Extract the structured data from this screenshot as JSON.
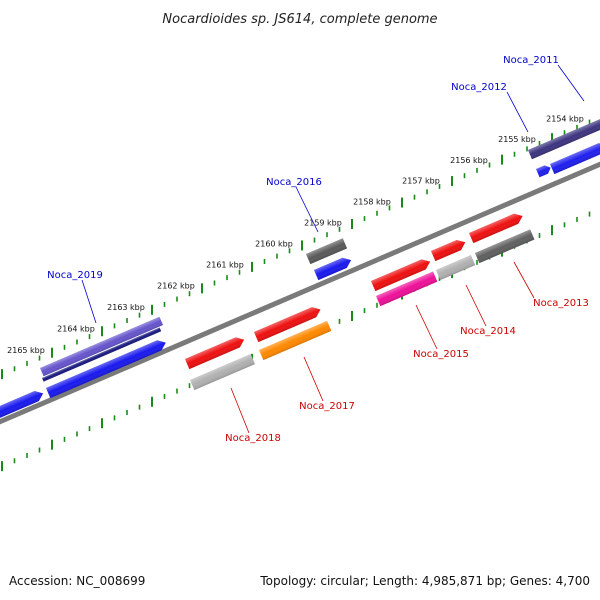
{
  "title": "Nocardioides sp. JS614, complete genome",
  "footer": {
    "accession": "Accession: NC_008699",
    "summary": "Topology: circular; Length: 4,985,871 bp; Genes: 4,700"
  },
  "colors": {
    "tick": "#1a8a1a",
    "backbone": "#7a7a7a",
    "label_forward": "#0000cc",
    "label_reverse": "#cc0000"
  },
  "scale_labels": [
    "2154 kbp",
    "2155 kbp",
    "2156 kbp",
    "2157 kbp",
    "2158 kbp",
    "2159 kbp",
    "2160 kbp",
    "2161 kbp",
    "2162 kbp",
    "2163 kbp",
    "2164 kbp",
    "2165 kbp"
  ],
  "gene_labels": [
    {
      "name": "Noca_2011",
      "strand": "forward"
    },
    {
      "name": "Noca_2012",
      "strand": "forward"
    },
    {
      "name": "Noca_2016",
      "strand": "forward"
    },
    {
      "name": "Noca_2019",
      "strand": "forward"
    },
    {
      "name": "Noca_2013",
      "strand": "reverse"
    },
    {
      "name": "Noca_2014",
      "strand": "reverse"
    },
    {
      "name": "Noca_2015",
      "strand": "reverse"
    },
    {
      "name": "Noca_2017",
      "strand": "reverse"
    },
    {
      "name": "Noca_2018",
      "strand": "reverse"
    }
  ],
  "features": [
    {
      "name": "Noca_2011",
      "color": "#3d3580"
    },
    {
      "name": "Noca_2012",
      "color": "#2020ee"
    },
    {
      "name": "Noca_2016",
      "color": "#5a5a5a"
    },
    {
      "name": "Noca_2016",
      "color": "#1a1aee"
    },
    {
      "name": "Noca_2019",
      "color": "#6655cc"
    },
    {
      "name": "Noca_2019",
      "color": "#1a1a80"
    },
    {
      "name": "Noca_2019",
      "color": "#1a1aee"
    },
    {
      "name": "Noca_2019",
      "color": "#1a1aee"
    },
    {
      "name": "Noca_2013",
      "color": "#ee1111"
    },
    {
      "name": "Noca_2013",
      "color": "#606060"
    },
    {
      "name": "Noca_2014",
      "color": "#ee1111"
    },
    {
      "name": "Noca_2014",
      "color": "#b0b0b0"
    },
    {
      "name": "Noca_2015",
      "color": "#ee1111"
    },
    {
      "name": "Noca_2015",
      "color": "#ee1199"
    },
    {
      "name": "Noca_2017",
      "color": "#ee1111"
    },
    {
      "name": "Noca_2017",
      "color": "#ff8800"
    },
    {
      "name": "Noca_2018",
      "color": "#ee1111"
    },
    {
      "name": "Noca_2018",
      "color": "#b0b0b0"
    }
  ]
}
